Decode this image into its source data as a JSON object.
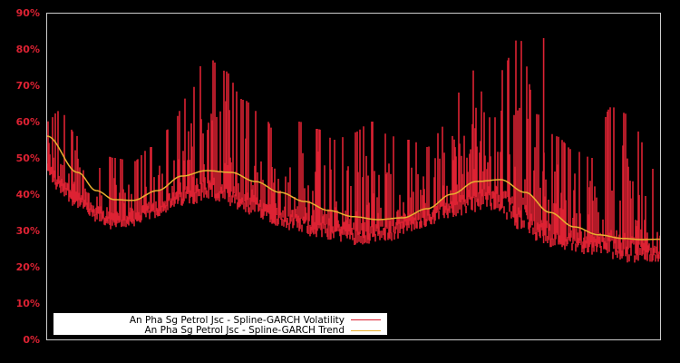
{
  "chart_data": {
    "type": "line",
    "title": "",
    "xlabel": "",
    "ylabel": "",
    "ylim": [
      0,
      90
    ],
    "y_ticks": [
      "0%",
      "10%",
      "20%",
      "30%",
      "40%",
      "50%",
      "60%",
      "70%",
      "80%",
      "90%"
    ],
    "y_tick_values": [
      0,
      10,
      20,
      30,
      40,
      50,
      60,
      70,
      80,
      90
    ],
    "grid": false,
    "legend_position": "lower-left",
    "colors": {
      "background": "#000000",
      "axis": "#cccccc",
      "tick_labels": "#dd2233",
      "volatility": "#dd2233",
      "trend": "#e8b030",
      "legend_bg": "#ffffff"
    },
    "series": [
      {
        "name": "An Pha Sg Petrol Jsc - Spline-GARCH Volatility",
        "color": "#dd2233",
        "x_frac": [
          0.0,
          0.02,
          0.05,
          0.08,
          0.11,
          0.14,
          0.17,
          0.2,
          0.23,
          0.26,
          0.29,
          0.32,
          0.35,
          0.38,
          0.41,
          0.44,
          0.47,
          0.5,
          0.53,
          0.56,
          0.59,
          0.62,
          0.65,
          0.68,
          0.71,
          0.74,
          0.77,
          0.8,
          0.83,
          0.86,
          0.89,
          0.92,
          0.95,
          0.98,
          1.0
        ],
        "upper_envelope": [
          60,
          63,
          56,
          52,
          50,
          49,
          53,
          58,
          67,
          78,
          74,
          66,
          62,
          55,
          60,
          58,
          55,
          57,
          60,
          56,
          55,
          53,
          59,
          70,
          78,
          74,
          83,
          62,
          56,
          52,
          50,
          64,
          62,
          52,
          38
        ],
        "lower_envelope": [
          45,
          40,
          36,
          32,
          30,
          31,
          33,
          35,
          37,
          38,
          36,
          34,
          33,
          31,
          29,
          28,
          27,
          26,
          26,
          27,
          29,
          31,
          33,
          34,
          35,
          34,
          30,
          27,
          25,
          24,
          23,
          22,
          21,
          21,
          21
        ],
        "peak_values": {
          "max": 83,
          "max_x_frac": 0.81
        }
      },
      {
        "name": "An Pha Sg Petrol Jsc - Spline-GARCH Trend",
        "color": "#e8b030",
        "x_frac": [
          0.0,
          0.05,
          0.08,
          0.11,
          0.14,
          0.18,
          0.22,
          0.26,
          0.3,
          0.34,
          0.38,
          0.42,
          0.46,
          0.5,
          0.54,
          0.58,
          0.62,
          0.66,
          0.7,
          0.74,
          0.78,
          0.82,
          0.86,
          0.9,
          0.94,
          0.97,
          1.0
        ],
        "values": [
          56.0,
          46.0,
          41.0,
          38.5,
          38.3,
          41.0,
          45.0,
          46.5,
          46.0,
          43.5,
          40.5,
          38.0,
          35.5,
          33.8,
          33.0,
          33.5,
          36.0,
          40.0,
          43.5,
          44.0,
          40.5,
          35.0,
          31.0,
          28.8,
          27.8,
          27.5,
          27.6
        ]
      }
    ]
  },
  "legend": {
    "items": [
      {
        "label": "An Pha Sg Petrol Jsc - Spline-GARCH Volatility",
        "color": "#dd2233"
      },
      {
        "label": "An Pha Sg Petrol Jsc - Spline-GARCH Trend",
        "color": "#e8b030"
      }
    ]
  }
}
